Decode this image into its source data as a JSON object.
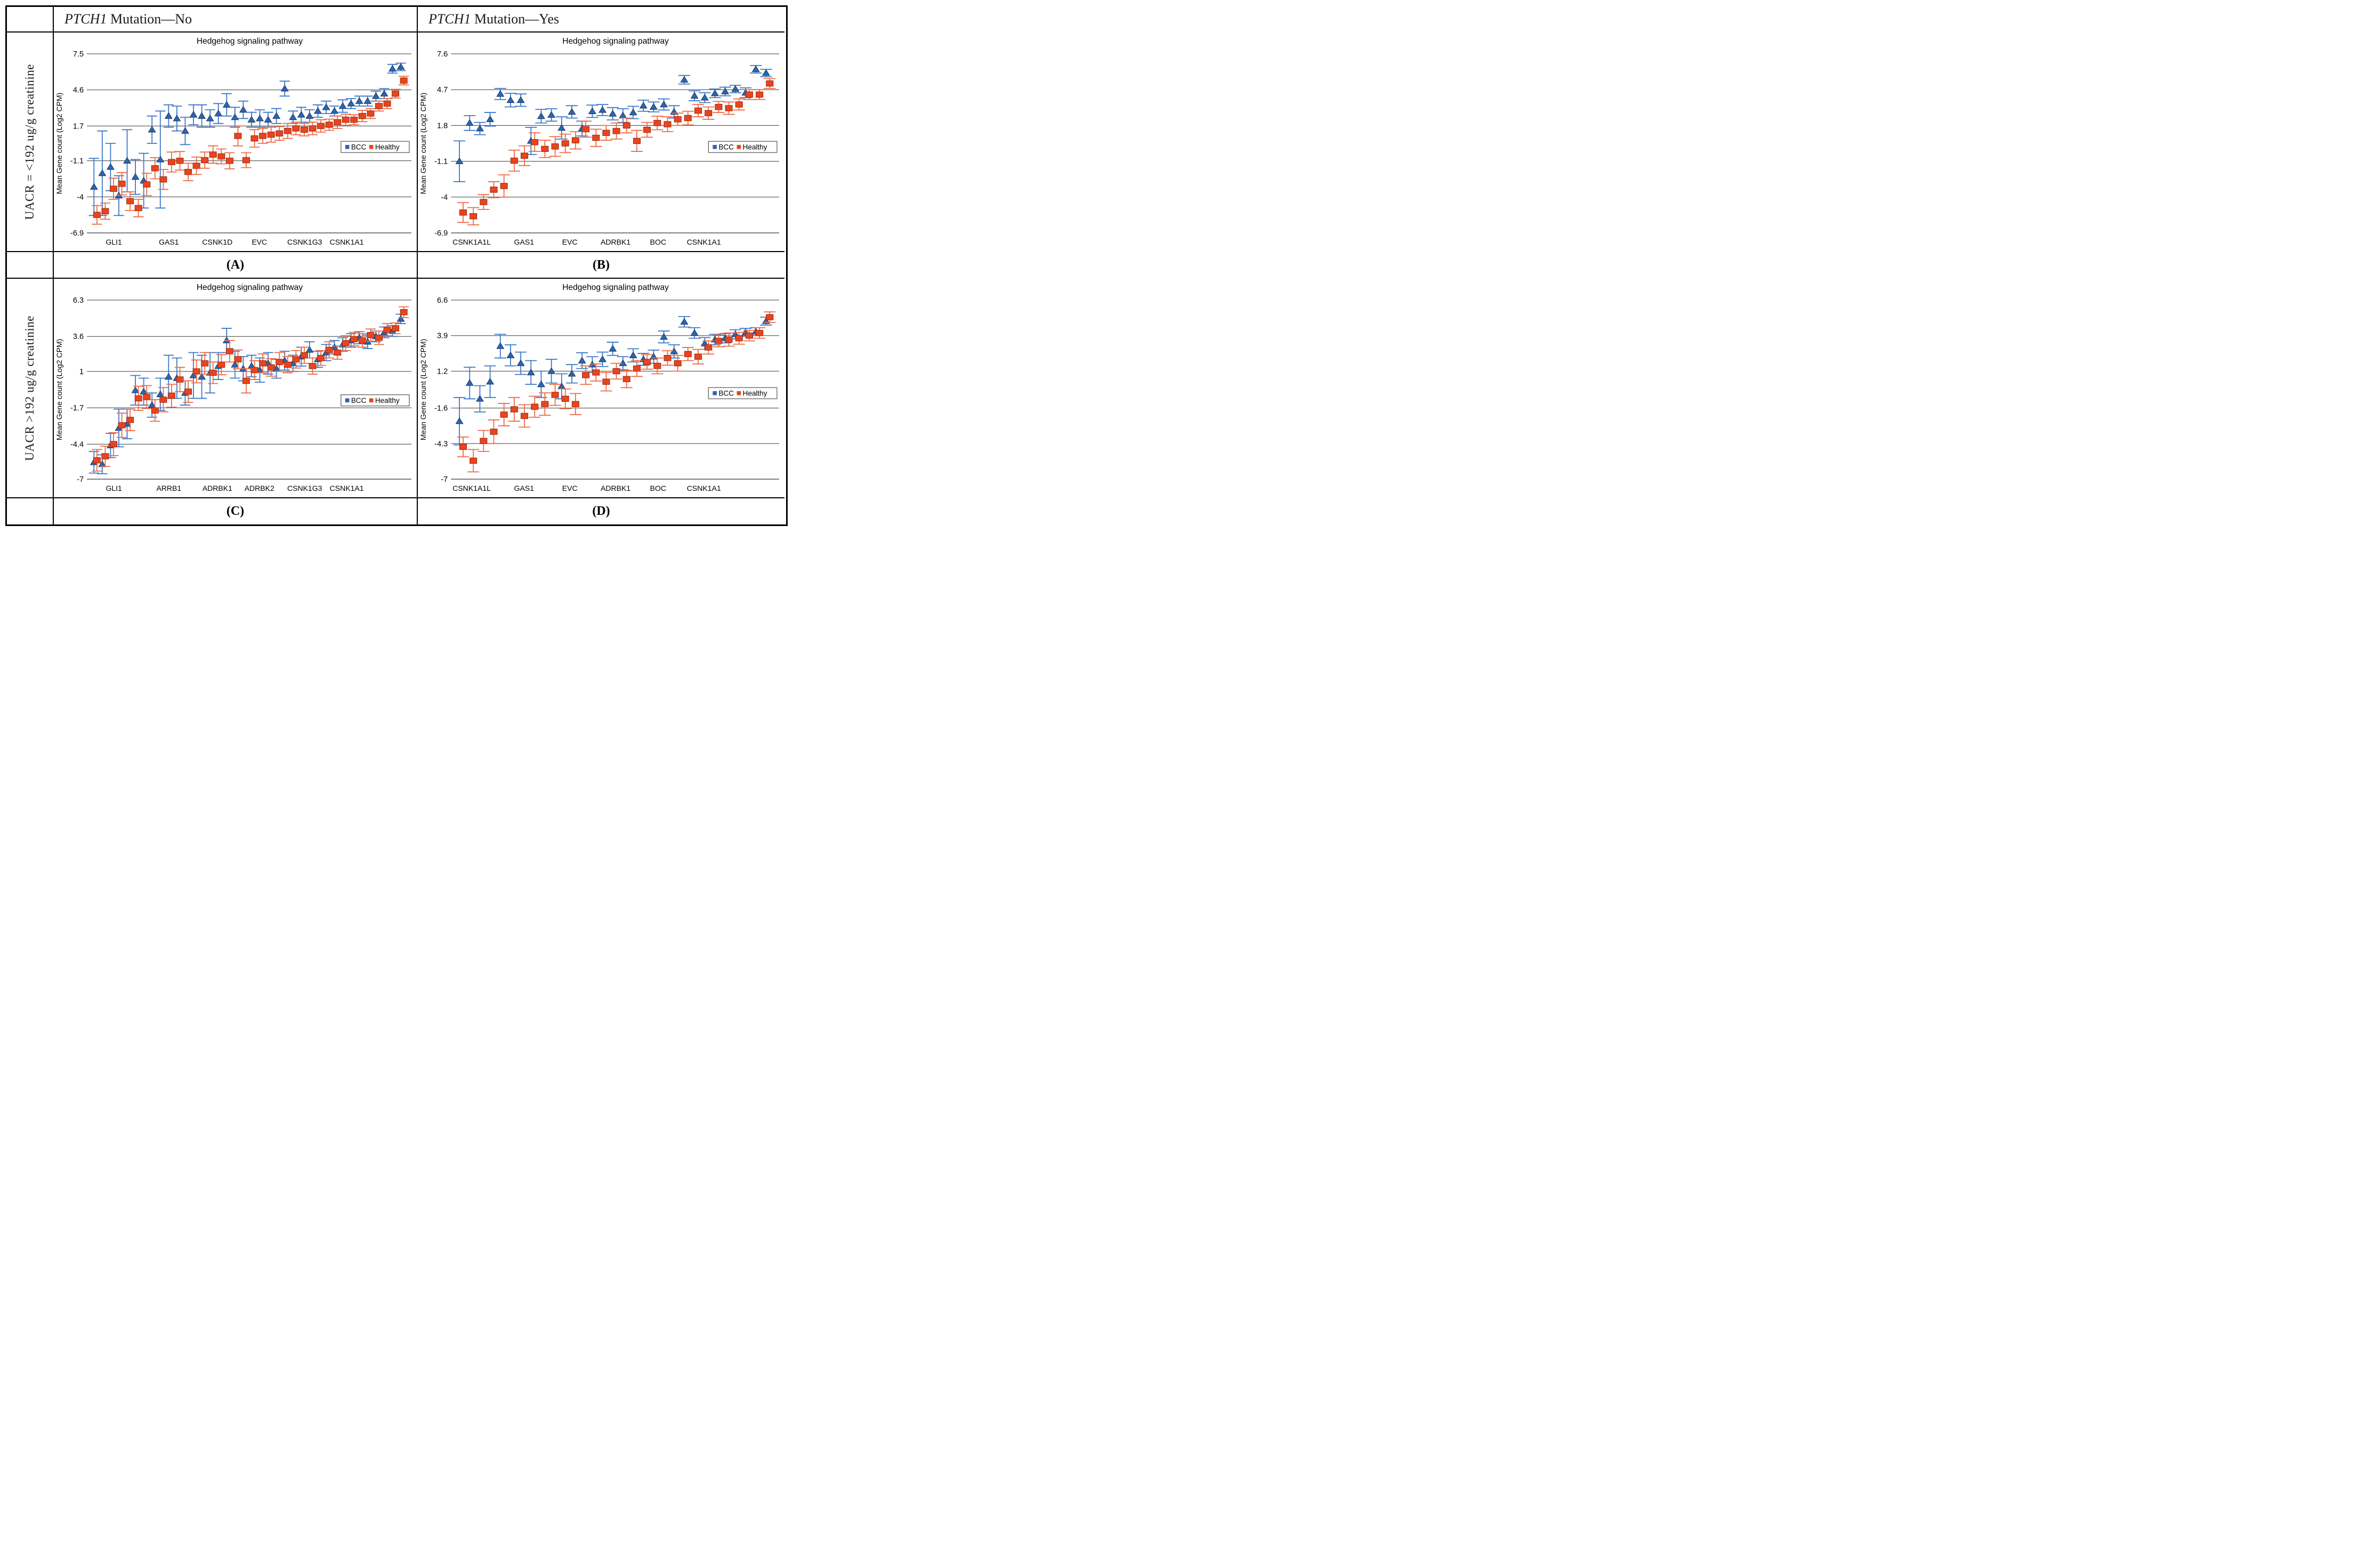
{
  "table": {
    "col_headers": [
      {
        "gene": "PTCH1",
        "rest": " Mutation—No"
      },
      {
        "gene": "PTCH1",
        "rest": " Mutation—Yes"
      }
    ],
    "row_headers": [
      "UACR = <192 ug/g creatinine",
      "UACR >192 ug/g creatinine"
    ],
    "panel_labels": [
      "(A)",
      "(B)",
      "(C)",
      "(D)"
    ]
  },
  "legend": {
    "items": [
      {
        "label": "BCC",
        "color": "#2E64B1"
      },
      {
        "label": "Healthy",
        "color": "#E8441F"
      }
    ]
  },
  "colors": {
    "bcc_marker": "#2E64B1",
    "bcc_edge": "#17375E",
    "bcc_errorbar": "#3C78C8",
    "healthy_marker": "#E8441F",
    "healthy_edge": "#9C2A0E",
    "healthy_errorbar": "#EE6B45",
    "gridline": "#3a3a3a",
    "axis": "#808080"
  },
  "chart_data": [
    {
      "id": "A",
      "type": "scatter",
      "title": "Hedgehog signaling pathway",
      "ylabel": "Mean Gene count (Log2 CPM)",
      "ylim": [
        -6.9,
        7.5
      ],
      "yticks": [
        7.5,
        4.6,
        1.7,
        -1.1,
        -4,
        -6.9
      ],
      "ytick_labels": [
        "7.5",
        "4.6",
        "1.7",
        "-1.1",
        "-4",
        "-6.9"
      ],
      "xtick_labels": [
        "GLI1",
        "GAS1",
        "CSNK1D",
        "EVC",
        "CSNK1G3",
        "CSNK1A1"
      ],
      "xtick_pos": [
        0.08,
        0.25,
        0.4,
        0.53,
        0.67,
        0.8
      ],
      "legend_pos": 0.52,
      "series": [
        {
          "name": "BCC",
          "marker": "triangle",
          "values": [
            -3.2,
            -2.1,
            -1.6,
            -3.9,
            -1.1,
            -2.4,
            -2.7,
            1.4,
            -1.0,
            2.5,
            2.3,
            1.3,
            2.6,
            2.5,
            2.3,
            2.7,
            3.4,
            2.4,
            3.0,
            2.2,
            2.3,
            2.2,
            2.5,
            4.7,
            2.4,
            2.6,
            2.5,
            2.9,
            3.2,
            2.9,
            3.3,
            3.5,
            3.7,
            3.7,
            4.1,
            4.3,
            6.3,
            6.45
          ],
          "errors": [
            2.3,
            3.4,
            1.9,
            1.6,
            2.5,
            1.4,
            2.2,
            1.1,
            3.9,
            0.9,
            1.0,
            1.1,
            0.8,
            0.9,
            0.7,
            0.8,
            0.9,
            0.8,
            0.7,
            0.6,
            0.7,
            0.6,
            0.6,
            0.6,
            0.5,
            0.6,
            0.5,
            0.5,
            0.5,
            0.4,
            0.5,
            0.4,
            0.4,
            0.4,
            0.4,
            0.4,
            0.35,
            0.3
          ]
        },
        {
          "name": "Healthy",
          "marker": "square",
          "values": [
            -5.45,
            -5.15,
            -3.35,
            -2.95,
            -4.35,
            -4.9,
            -3.0,
            -1.7,
            -2.6,
            -1.2,
            -1.1,
            -2.0,
            -1.5,
            -1.05,
            -0.6,
            -0.75,
            -1.1,
            0.9,
            -1.05,
            0.7,
            0.9,
            1.0,
            1.1,
            1.3,
            1.5,
            1.4,
            1.5,
            1.7,
            1.8,
            2.0,
            2.2,
            2.2,
            2.5,
            2.7,
            3.3,
            3.5,
            4.3,
            5.35
          ],
          "errors": [
            0.75,
            0.65,
            0.85,
            0.9,
            0.75,
            0.7,
            0.9,
            0.85,
            0.8,
            0.8,
            0.75,
            0.7,
            0.7,
            0.65,
            0.7,
            0.6,
            0.65,
            0.8,
            0.6,
            0.7,
            0.6,
            0.6,
            0.55,
            0.6,
            0.5,
            0.5,
            0.5,
            0.5,
            0.45,
            0.5,
            0.45,
            0.4,
            0.45,
            0.4,
            0.4,
            0.4,
            0.35,
            0.35
          ]
        }
      ]
    },
    {
      "id": "B",
      "type": "scatter",
      "title": "Hedgehog signaling pathway",
      "ylabel": "Mean Gene count (Log2 CPM)",
      "ylim": [
        -6.9,
        7.6
      ],
      "yticks": [
        7.6,
        4.7,
        1.8,
        -1.1,
        -4,
        -6.9
      ],
      "ytick_labels": [
        "7.6",
        "4.7",
        "1.8",
        "-1.1",
        "-4",
        "-6.9"
      ],
      "xtick_labels": [
        "CSNK1A1L",
        "GAS1",
        "EVC",
        "ADRBK1",
        "BOC",
        "CSNK1A1"
      ],
      "xtick_pos": [
        0.06,
        0.22,
        0.36,
        0.5,
        0.63,
        0.77
      ],
      "legend_pos": 0.52,
      "series": [
        {
          "name": "BCC",
          "marker": "triangle",
          "values": [
            -1.1,
            2.0,
            1.55,
            2.3,
            4.35,
            3.85,
            3.85,
            0.55,
            2.55,
            2.65,
            1.6,
            2.9,
            1.55,
            2.95,
            3.05,
            2.75,
            2.6,
            2.85,
            3.4,
            3.3,
            3.5,
            2.9,
            5.5,
            4.2,
            4.05,
            4.4,
            4.55,
            4.75,
            4.45,
            6.35,
            6.05
          ],
          "errors": [
            1.65,
            0.6,
            0.5,
            0.55,
            0.45,
            0.55,
            0.5,
            1.1,
            0.55,
            0.5,
            0.9,
            0.5,
            0.6,
            0.5,
            0.45,
            0.5,
            0.55,
            0.5,
            0.45,
            0.4,
            0.45,
            0.5,
            0.35,
            0.4,
            0.4,
            0.35,
            0.35,
            0.3,
            0.4,
            0.3,
            0.3
          ]
        },
        {
          "name": "Healthy",
          "marker": "square",
          "values": [
            -5.25,
            -5.55,
            -4.4,
            -3.4,
            -3.1,
            -1.05,
            -0.65,
            0.45,
            -0.1,
            0.1,
            0.35,
            0.6,
            1.5,
            0.8,
            1.2,
            1.35,
            1.8,
            0.55,
            1.45,
            2.0,
            1.9,
            2.3,
            2.4,
            3.0,
            2.8,
            3.3,
            3.2,
            3.5,
            4.3,
            4.3,
            5.2
          ],
          "errors": [
            0.8,
            0.7,
            0.6,
            0.65,
            0.9,
            0.85,
            0.8,
            0.75,
            0.7,
            0.8,
            0.75,
            0.7,
            0.65,
            0.7,
            0.6,
            0.65,
            0.6,
            0.85,
            0.6,
            0.55,
            0.6,
            0.5,
            0.55,
            0.5,
            0.5,
            0.45,
            0.5,
            0.45,
            0.4,
            0.4,
            0.4
          ]
        }
      ]
    },
    {
      "id": "C",
      "type": "scatter",
      "title": "Hedgehog signaling pathway",
      "ylabel": "Mean Gene count (Log2 CPM)",
      "ylim": [
        -7,
        6.3
      ],
      "yticks": [
        6.3,
        3.6,
        1,
        -1.7,
        -4.4,
        -7
      ],
      "ytick_labels": [
        "6.3",
        "3.6",
        "1",
        "-1.7",
        "-4.4",
        "-7"
      ],
      "xtick_labels": [
        "GLI1",
        "ARRB1",
        "ADRBK1",
        "ADRBK2",
        "CSNK1G3",
        "CSNK1A1"
      ],
      "xtick_pos": [
        0.08,
        0.25,
        0.4,
        0.53,
        0.67,
        0.8
      ],
      "legend_pos": 0.56,
      "series": [
        {
          "name": "BCC",
          "marker": "triangle",
          "values": [
            -5.75,
            -5.9,
            -4.5,
            -3.2,
            -2.9,
            -0.4,
            -0.5,
            -1.5,
            -0.7,
            0.6,
            0.5,
            -0.6,
            0.7,
            0.6,
            0.9,
            1.4,
            3.3,
            1.5,
            1.2,
            1.4,
            1.1,
            1.6,
            1.2,
            1.8,
            1.6,
            2.1,
            2.6,
            1.9,
            2.4,
            2.8,
            3.0,
            3.3,
            3.5,
            3.2,
            3.6,
            3.9,
            4.0,
            4.9
          ],
          "errors": [
            0.8,
            0.7,
            0.9,
            1.4,
            1.1,
            1.1,
            1.0,
            0.9,
            1.2,
            1.6,
            1.5,
            0.9,
            1.7,
            1.6,
            1.5,
            1.0,
            0.9,
            1.0,
            0.9,
            0.8,
            0.9,
            0.8,
            0.7,
            0.7,
            0.6,
            0.7,
            0.6,
            0.6,
            0.6,
            0.5,
            0.5,
            0.5,
            0.45,
            0.5,
            0.4,
            0.4,
            0.4,
            0.35
          ]
        },
        {
          "name": "Healthy",
          "marker": "square",
          "values": [
            -5.6,
            -5.3,
            -4.4,
            -3.0,
            -2.6,
            -1.0,
            -0.9,
            -1.9,
            -1.1,
            -0.8,
            0.4,
            -0.5,
            1.0,
            1.6,
            0.9,
            1.5,
            2.5,
            1.9,
            0.3,
            1.1,
            1.6,
            1.3,
            1.7,
            1.5,
            1.9,
            2.2,
            1.4,
            2.0,
            2.6,
            2.4,
            3.1,
            3.4,
            3.3,
            3.7,
            3.5,
            4.1,
            4.2,
            5.4
          ],
          "errors": [
            0.8,
            0.75,
            0.85,
            0.9,
            0.8,
            0.9,
            0.85,
            0.8,
            0.9,
            0.85,
            0.9,
            0.8,
            0.85,
            0.8,
            0.8,
            0.75,
            0.8,
            0.7,
            0.9,
            0.7,
            0.7,
            0.65,
            0.7,
            0.6,
            0.65,
            0.6,
            0.6,
            0.55,
            0.6,
            0.5,
            0.55,
            0.5,
            0.5,
            0.45,
            0.5,
            0.45,
            0.4,
            0.4
          ]
        }
      ]
    },
    {
      "id": "D",
      "type": "scatter",
      "title": "Hedgehog signaling pathway",
      "ylabel": "Mean Gene count (Log2 CPM)",
      "ylim": [
        -7,
        6.6
      ],
      "yticks": [
        6.6,
        3.9,
        1.2,
        -1.6,
        -4.3,
        -7
      ],
      "ytick_labels": [
        "6.6",
        "3.9",
        "1.2",
        "-1.6",
        "-4.3",
        "-7"
      ],
      "xtick_labels": [
        "CSNK1A1L",
        "GAS1",
        "EVC",
        "ADRBK1",
        "BOC",
        "CSNK1A1"
      ],
      "xtick_pos": [
        0.06,
        0.22,
        0.36,
        0.5,
        0.63,
        0.77
      ],
      "legend_pos": 0.52,
      "series": [
        {
          "name": "BCC",
          "marker": "triangle",
          "values": [
            -2.6,
            0.3,
            -0.9,
            0.4,
            3.1,
            2.4,
            1.8,
            1.1,
            0.2,
            1.2,
            0.05,
            1.0,
            2.0,
            1.7,
            2.1,
            2.9,
            1.8,
            2.4,
            2.1,
            2.3,
            3.8,
            2.7,
            4.95,
            4.1,
            3.3,
            3.6,
            3.7,
            4.0,
            4.15,
            4.2,
            5.0
          ],
          "errors": [
            1.8,
            1.2,
            1.0,
            1.2,
            0.9,
            0.8,
            0.85,
            0.9,
            1.0,
            0.9,
            0.95,
            0.7,
            0.6,
            0.6,
            0.55,
            0.5,
            0.5,
            0.5,
            0.45,
            0.5,
            0.45,
            0.5,
            0.4,
            0.4,
            0.45,
            0.4,
            0.35,
            0.35,
            0.3,
            0.3,
            0.3
          ]
        },
        {
          "name": "Healthy",
          "marker": "square",
          "values": [
            -4.55,
            -5.6,
            -4.1,
            -3.4,
            -2.1,
            -1.7,
            -2.2,
            -1.5,
            -1.3,
            -0.6,
            -0.9,
            -1.3,
            0.9,
            1.1,
            0.4,
            1.2,
            0.6,
            1.4,
            1.9,
            1.6,
            2.2,
            1.8,
            2.5,
            2.3,
            3.0,
            3.5,
            3.6,
            3.7,
            3.9,
            4.1,
            5.3
          ],
          "errors": [
            0.75,
            0.85,
            0.8,
            0.9,
            0.85,
            0.9,
            0.85,
            0.8,
            0.85,
            0.8,
            0.75,
            0.8,
            0.7,
            0.65,
            0.7,
            0.6,
            0.65,
            0.6,
            0.55,
            0.6,
            0.55,
            0.6,
            0.5,
            0.55,
            0.5,
            0.45,
            0.5,
            0.45,
            0.4,
            0.4,
            0.4
          ]
        }
      ]
    }
  ]
}
